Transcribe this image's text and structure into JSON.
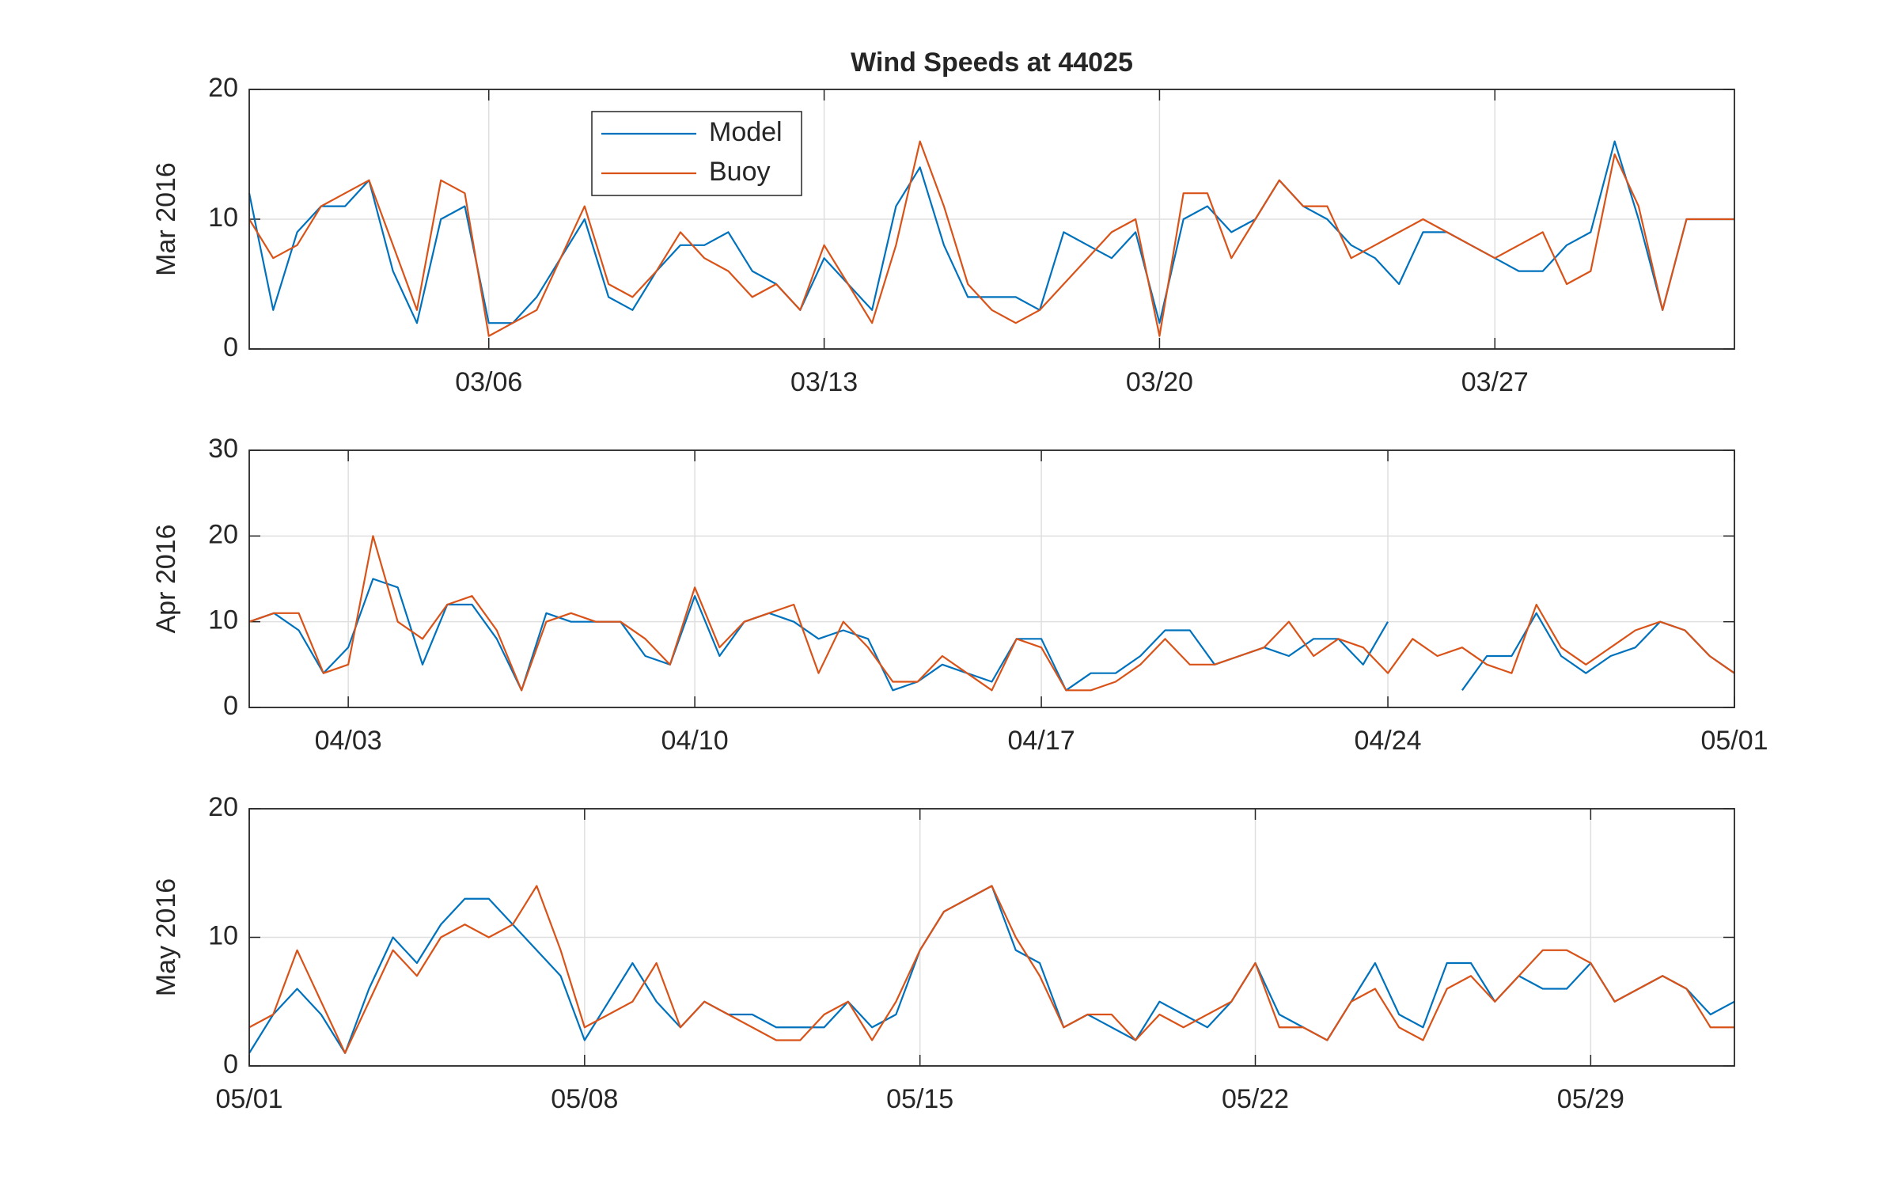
{
  "chart_data": [
    {
      "type": "line",
      "title": "Wind Speeds at 44025",
      "ylabel": "Mar 2016",
      "x": [
        1,
        1.5,
        2,
        2.5,
        3,
        3.5,
        4,
        4.5,
        5,
        5.5,
        6,
        6.5,
        7,
        7.5,
        8,
        8.5,
        9,
        9.5,
        10,
        10.5,
        11,
        11.5,
        12,
        12.5,
        13,
        13.5,
        14,
        14.5,
        15,
        15.5,
        16,
        16.5,
        17,
        17.5,
        18,
        18.5,
        19,
        19.5,
        20,
        20.5,
        21,
        21.5,
        22,
        22.5,
        23,
        23.5,
        24,
        24.5,
        25,
        25.5,
        26,
        26.5,
        27,
        27.5,
        28,
        28.5,
        29,
        29.5,
        30,
        30.5,
        31,
        31.5,
        32
      ],
      "series": [
        {
          "name": "Model",
          "color": "#0072BD",
          "values": [
            12,
            3,
            9,
            11,
            11,
            13,
            6,
            2,
            10,
            11,
            2,
            2,
            4,
            7,
            10,
            4,
            3,
            6,
            8,
            8,
            9,
            6,
            5,
            3,
            7,
            5,
            3,
            11,
            14,
            8,
            4,
            4,
            4,
            3,
            9,
            8,
            7,
            9,
            2,
            10,
            11,
            9,
            10,
            13,
            11,
            10,
            8,
            7,
            5,
            9,
            9,
            8,
            7,
            6,
            6,
            8,
            9,
            16,
            10,
            3,
            10,
            10,
            10
          ]
        },
        {
          "name": "Buoy",
          "color": "#D95319",
          "values": [
            10,
            7,
            8,
            11,
            12,
            13,
            8,
            3,
            13,
            12,
            1,
            2,
            3,
            7,
            11,
            5,
            4,
            6,
            9,
            7,
            6,
            4,
            5,
            3,
            8,
            5,
            2,
            8,
            16,
            11,
            5,
            3,
            2,
            3,
            5,
            7,
            9,
            10,
            1,
            12,
            12,
            7,
            10,
            13,
            11,
            11,
            7,
            8,
            9,
            10,
            9,
            8,
            7,
            8,
            9,
            5,
            6,
            15,
            11,
            3,
            10,
            10,
            10
          ]
        }
      ],
      "xlim": [
        1,
        32
      ],
      "xticks": [
        {
          "value": 6,
          "label": "03/06"
        },
        {
          "value": 13,
          "label": "03/13"
        },
        {
          "value": 20,
          "label": "03/20"
        },
        {
          "value": 27,
          "label": "03/27"
        }
      ],
      "ylim": [
        0,
        20
      ],
      "yticks": [
        0,
        10,
        20
      ],
      "grid": true,
      "legend": "top-left"
    },
    {
      "type": "line",
      "ylabel": "Apr 2016",
      "x": [
        1,
        1.5,
        2,
        2.5,
        3,
        3.5,
        4,
        4.5,
        5,
        5.5,
        6,
        6.5,
        7,
        7.5,
        8,
        8.5,
        9,
        9.5,
        10,
        10.5,
        11,
        11.5,
        12,
        12.5,
        13,
        13.5,
        14,
        14.5,
        15,
        15.5,
        16,
        16.5,
        17,
        17.5,
        18,
        18.5,
        19,
        19.5,
        20,
        20.5,
        21,
        21.5,
        22,
        22.5,
        23,
        23.5,
        24,
        24.5,
        25,
        25.5,
        26,
        26.5,
        27,
        27.5,
        28,
        28.5,
        29,
        29.5,
        30,
        30.5,
        31
      ],
      "series": [
        {
          "color": "#0072BD",
          "values": [
            10,
            11,
            9,
            4,
            7,
            15,
            14,
            5,
            12,
            12,
            8,
            2,
            11,
            10,
            10,
            10,
            6,
            5,
            13,
            6,
            10,
            11,
            10,
            8,
            9,
            8,
            2,
            3,
            5,
            4,
            3,
            8,
            8,
            2,
            4,
            4,
            6,
            9,
            9,
            5,
            6,
            7,
            6,
            8,
            8,
            5,
            10,
            null,
            null,
            2,
            6,
            6,
            11,
            6,
            4,
            6,
            7,
            10,
            9,
            6,
            4
          ]
        },
        {
          "color": "#D95319",
          "values": [
            10,
            11,
            11,
            4,
            5,
            20,
            10,
            8,
            12,
            13,
            9,
            2,
            10,
            11,
            10,
            10,
            8,
            5,
            14,
            7,
            10,
            11,
            12,
            4,
            10,
            7,
            3,
            3,
            6,
            4,
            2,
            8,
            7,
            2,
            2,
            3,
            5,
            8,
            5,
            5,
            6,
            7,
            10,
            6,
            8,
            7,
            4,
            8,
            6,
            7,
            5,
            4,
            12,
            7,
            5,
            7,
            9,
            10,
            9,
            6,
            4
          ]
        }
      ],
      "xlim": [
        1,
        31
      ],
      "xticks": [
        {
          "value": 3,
          "label": "04/03"
        },
        {
          "value": 10,
          "label": "04/10"
        },
        {
          "value": 17,
          "label": "04/17"
        },
        {
          "value": 24,
          "label": "04/24"
        },
        {
          "value": 31,
          "label": "05/01"
        }
      ],
      "ylim": [
        0,
        30
      ],
      "yticks": [
        0,
        10,
        20,
        30
      ],
      "grid": true
    },
    {
      "type": "line",
      "ylabel": "May 2016",
      "x": [
        1,
        1.5,
        2,
        2.5,
        3,
        3.5,
        4,
        4.5,
        5,
        5.5,
        6,
        6.5,
        7,
        7.5,
        8,
        8.5,
        9,
        9.5,
        10,
        10.5,
        11,
        11.5,
        12,
        12.5,
        13,
        13.5,
        14,
        14.5,
        15,
        15.5,
        16,
        16.5,
        17,
        17.5,
        18,
        18.5,
        19,
        19.5,
        20,
        20.5,
        21,
        21.5,
        22,
        22.5,
        23,
        23.5,
        24,
        24.5,
        25,
        25.5,
        26,
        26.5,
        27,
        27.5,
        28,
        28.5,
        29,
        29.5,
        30,
        30.5,
        31,
        31.5,
        32
      ],
      "series": [
        {
          "color": "#0072BD",
          "values": [
            1,
            4,
            6,
            4,
            1,
            6,
            10,
            8,
            11,
            13,
            13,
            11,
            9,
            7,
            2,
            5,
            8,
            5,
            3,
            5,
            4,
            4,
            3,
            3,
            3,
            5,
            3,
            4,
            9,
            12,
            13,
            14,
            9,
            8,
            3,
            4,
            3,
            2,
            5,
            4,
            3,
            5,
            8,
            4,
            3,
            2,
            5,
            8,
            4,
            3,
            8,
            8,
            5,
            7,
            6,
            6,
            8,
            5,
            6,
            7,
            6,
            4,
            5
          ]
        },
        {
          "color": "#D95319",
          "values": [
            3,
            4,
            9,
            5,
            1,
            5,
            9,
            7,
            10,
            11,
            10,
            11,
            14,
            9,
            3,
            4,
            5,
            8,
            3,
            5,
            4,
            3,
            2,
            2,
            4,
            5,
            2,
            5,
            9,
            12,
            13,
            14,
            10,
            7,
            3,
            4,
            4,
            2,
            4,
            3,
            4,
            5,
            8,
            3,
            3,
            2,
            5,
            6,
            3,
            2,
            6,
            7,
            5,
            7,
            9,
            9,
            8,
            5,
            6,
            7,
            6,
            3,
            3
          ]
        }
      ],
      "xlim": [
        1,
        32
      ],
      "xticks": [
        {
          "value": 1,
          "label": "05/01"
        },
        {
          "value": 8,
          "label": "05/08"
        },
        {
          "value": 15,
          "label": "05/15"
        },
        {
          "value": 22,
          "label": "05/22"
        },
        {
          "value": 29,
          "label": "05/29"
        }
      ],
      "ylim": [
        0,
        20
      ],
      "yticks": [
        0,
        10,
        20
      ],
      "grid": true
    }
  ]
}
